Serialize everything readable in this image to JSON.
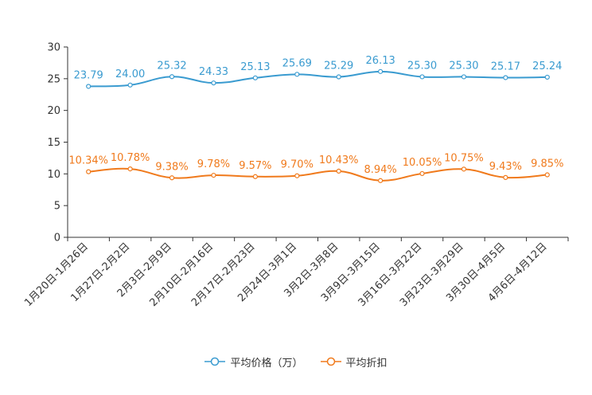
{
  "chart_data": {
    "type": "line",
    "title": "",
    "xlabel": "",
    "ylabel": "",
    "ylim": [
      0,
      30
    ],
    "yticks": [
      0,
      5,
      10,
      15,
      20,
      25,
      30
    ],
    "categories": [
      "1月20日-1月26日",
      "1月27日-2月2日",
      "2月3日-2月9日",
      "2月10日-2月16日",
      "2月17日-2月23日",
      "2月24日-3月1日",
      "3月2日-3月8日",
      "3月9日-3月15日",
      "3月16日-3月22日",
      "3月23日-3月29日",
      "3月30日-4月5日",
      "4月6日-4月12日"
    ],
    "series": [
      {
        "name": "平均价格（万）",
        "color": "#3a9bd0",
        "values": [
          23.79,
          24.0,
          25.32,
          24.33,
          25.13,
          25.69,
          25.29,
          26.13,
          25.3,
          25.3,
          25.17,
          25.24
        ],
        "labels": [
          "23.79",
          "24.00",
          "25.32",
          "24.33",
          "25.13",
          "25.69",
          "25.29",
          "26.13",
          "25.30",
          "25.30",
          "25.17",
          "25.24"
        ]
      },
      {
        "name": "平均折扣",
        "color": "#f07a1c",
        "values": [
          10.34,
          10.78,
          9.38,
          9.78,
          9.57,
          9.7,
          10.43,
          8.94,
          10.05,
          10.75,
          9.43,
          9.85
        ],
        "labels": [
          "10.34%",
          "10.78%",
          "9.38%",
          "9.78%",
          "9.57%",
          "9.70%",
          "10.43%",
          "8.94%",
          "10.05%",
          "10.75%",
          "9.43%",
          "9.85%"
        ]
      }
    ],
    "grid": false,
    "legend_position": "bottom"
  }
}
